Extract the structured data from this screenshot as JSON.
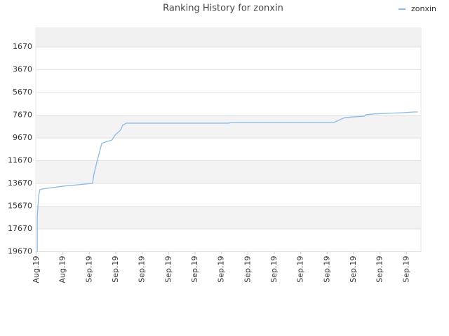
{
  "chart_data": {
    "type": "line",
    "title": "Ranking History for zonxin",
    "x": [
      0.03,
      0.03,
      0.08,
      0.13,
      0.21,
      1.01,
      2.12,
      2.18,
      2.33,
      2.47,
      2.6,
      2.86,
      2.97,
      3.18,
      3.26,
      3.4,
      7.29,
      7.35,
      11.25,
      11.49,
      11.67,
      12.02,
      12.41,
      12.47,
      12.73,
      13.21,
      13.87,
      14.27,
      14.43
    ],
    "series": [
      {
        "name": "zonxin",
        "color": "#88bbee",
        "values": [
          19670,
          16620,
          14775,
          14220,
          14160,
          13910,
          13670,
          12800,
          11390,
          10160,
          10030,
          9850,
          9420,
          8990,
          8560,
          8370,
          8370,
          8310,
          8310,
          8060,
          7880,
          7820,
          7760,
          7630,
          7570,
          7510,
          7450,
          7390,
          7390
        ]
      }
    ],
    "xlim": [
      0,
      14.55
    ],
    "xticks": [
      {
        "value": 0,
        "label": "Aug.19"
      },
      {
        "value": 1,
        "label": "Aug.19"
      },
      {
        "value": 2,
        "label": "Sep.19"
      },
      {
        "value": 3,
        "label": "Sep.19"
      },
      {
        "value": 4,
        "label": "Sep.19"
      },
      {
        "value": 5,
        "label": "Sep.19"
      },
      {
        "value": 6,
        "label": "Sep.19"
      },
      {
        "value": 7,
        "label": "Sep.19"
      },
      {
        "value": 8,
        "label": "Sep.19"
      },
      {
        "value": 9,
        "label": "Sep.19"
      },
      {
        "value": 10,
        "label": "Sep.19"
      },
      {
        "value": 11,
        "label": "Sep.19"
      },
      {
        "value": 12,
        "label": "Sep.19"
      },
      {
        "value": 13,
        "label": "Sep.19"
      },
      {
        "value": 14,
        "label": "Sep.19"
      }
    ],
    "ylim": [
      19670,
      0
    ],
    "yticks": [
      1670,
      3670,
      5670,
      7670,
      9670,
      11670,
      13670,
      15670,
      17670,
      19670
    ],
    "grid": true,
    "legend": "top-right"
  }
}
